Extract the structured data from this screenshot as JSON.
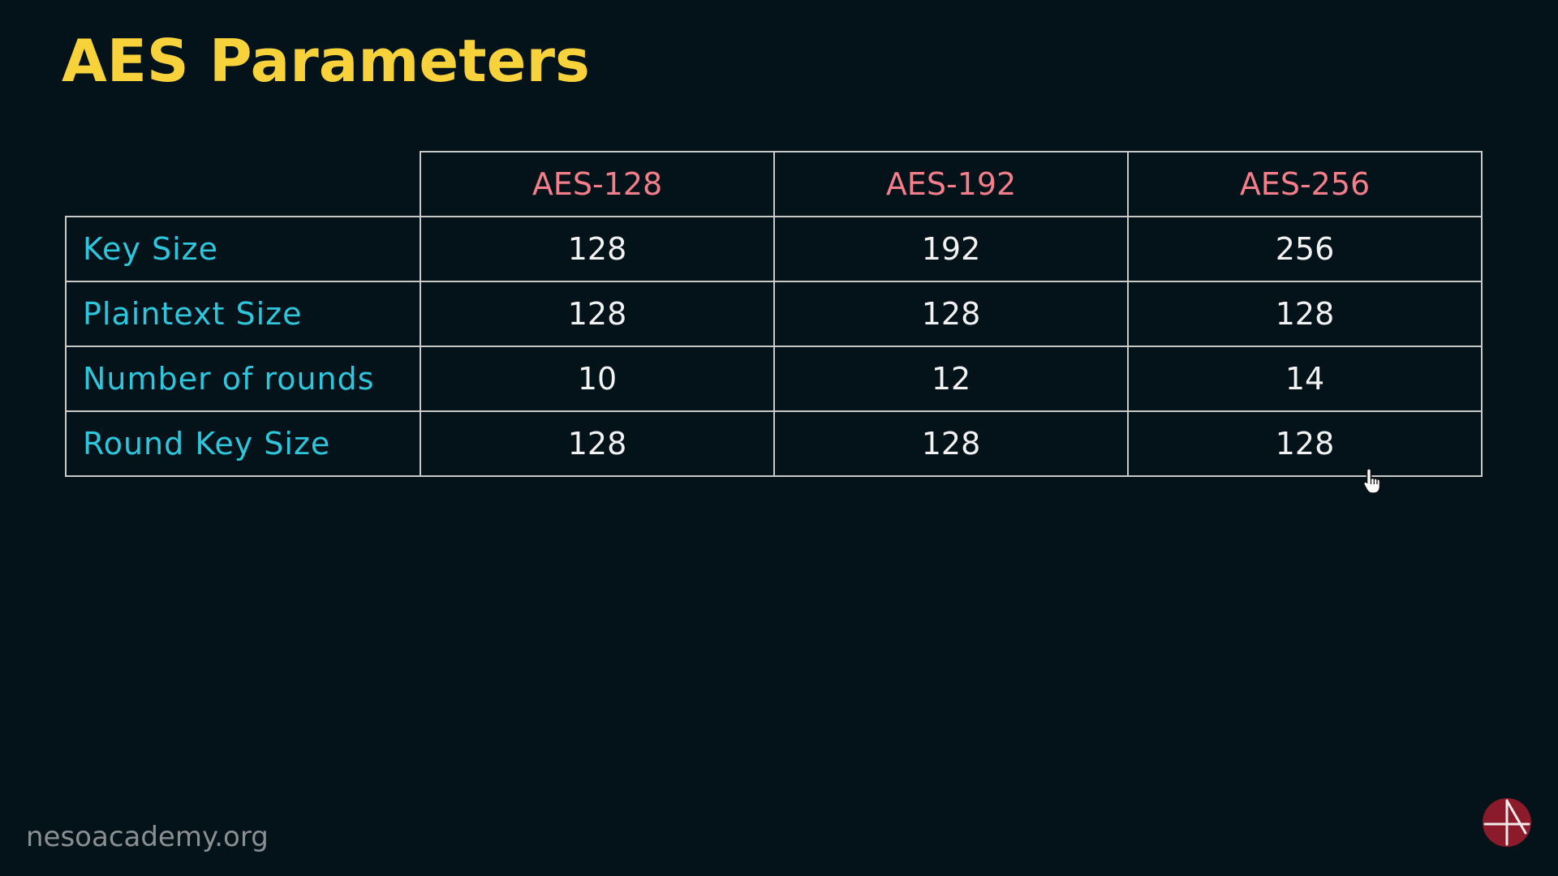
{
  "slide": {
    "title": "AES Parameters"
  },
  "table": {
    "headers": [
      "",
      "AES-128",
      "AES-192",
      "AES-256"
    ],
    "rows": [
      {
        "label": "Key Size",
        "values": [
          "128",
          "192",
          "256"
        ]
      },
      {
        "label": "Plaintext Size",
        "values": [
          "128",
          "128",
          "128"
        ]
      },
      {
        "label": "Number of rounds",
        "values": [
          "10",
          "12",
          "14"
        ]
      },
      {
        "label": "Round Key Size",
        "values": [
          "128",
          "128",
          "128"
        ]
      }
    ]
  },
  "footer": {
    "watermark": "nesoacademy.org",
    "logo_icon": "neso-academy-logo-icon"
  },
  "colors": {
    "background": "#041219",
    "title": "#f7d23a",
    "column_header": "#f47e89",
    "row_label": "#2ec6dc",
    "cell_value": "#f2f2f2",
    "border": "#c9c9c9",
    "logo": "#8b1a2b"
  },
  "pointer": {
    "icon": "hand-pointer-icon"
  }
}
